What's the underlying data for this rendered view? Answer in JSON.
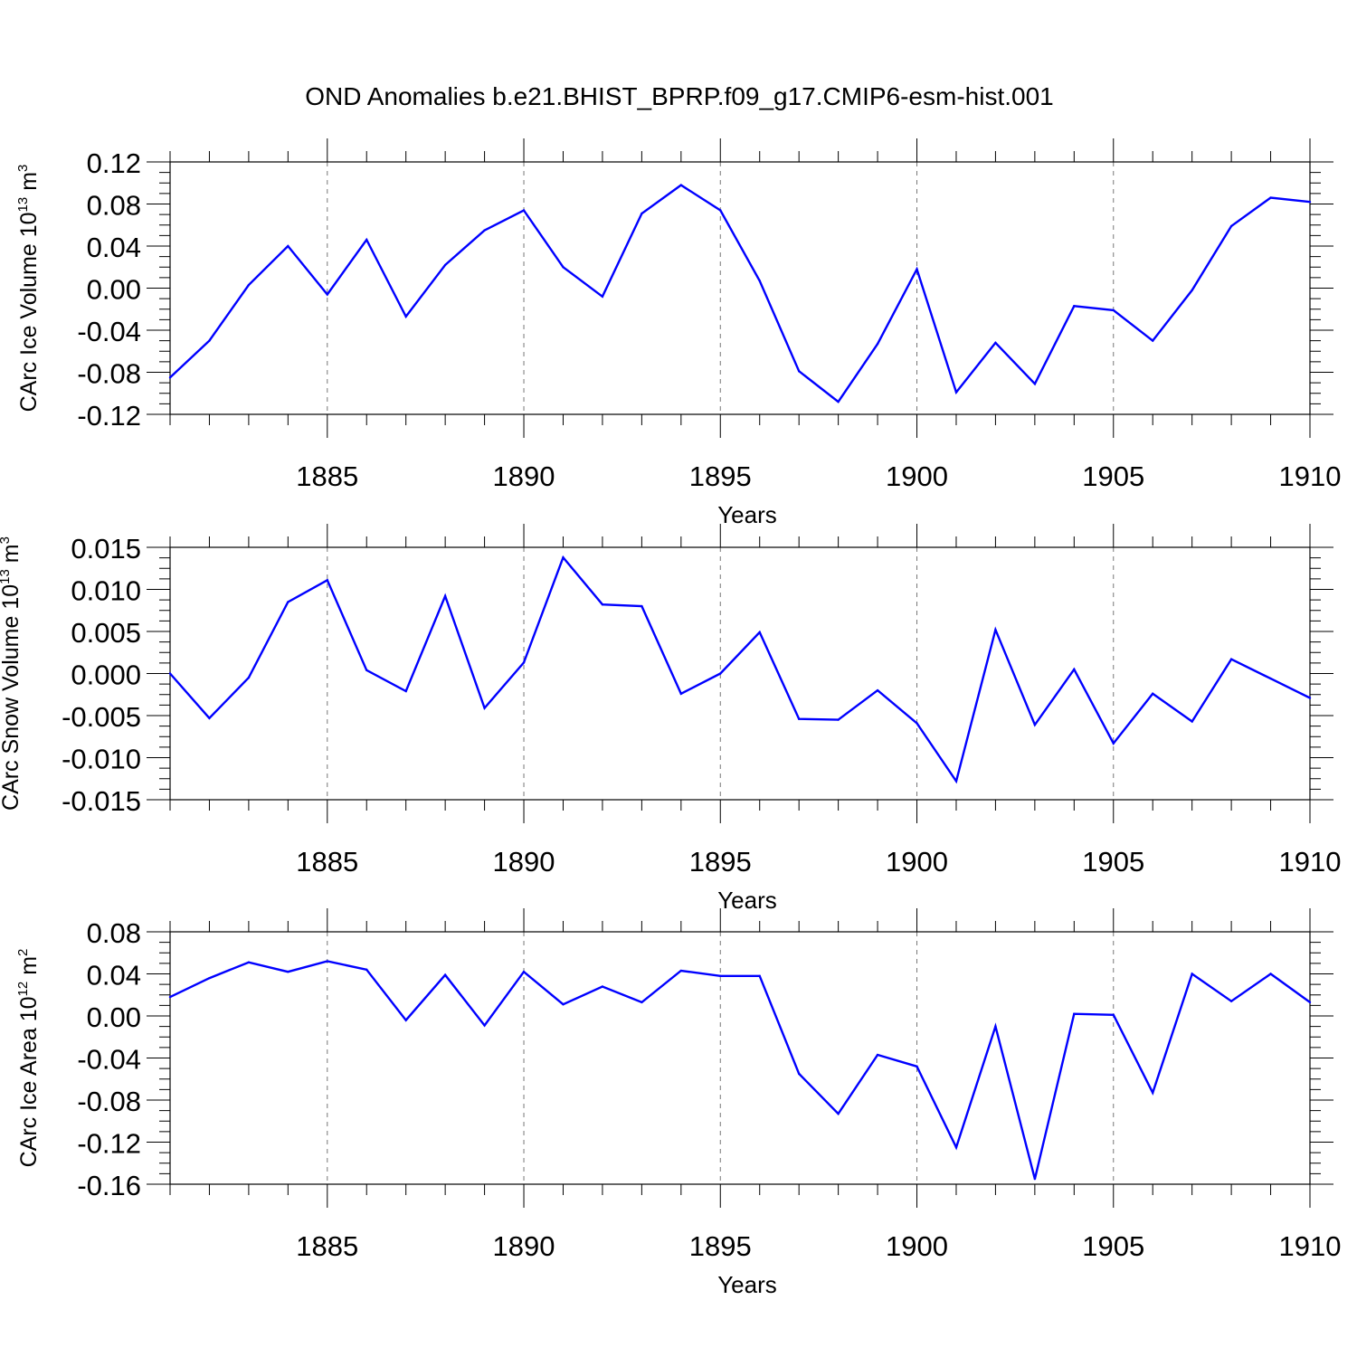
{
  "title": "OND Anomalies b.e21.BHIST_BPRP.f09_g17.CMIP6-esm-hist.001",
  "line_color": "#0000ff",
  "chart_data": [
    {
      "type": "line",
      "ylabel": {
        "main": "CArc Ice Volume 10",
        "exp": "13",
        "mid": " m",
        "unit_exp": "3"
      },
      "xlabel": "Years",
      "xlim": [
        1881,
        1910
      ],
      "ylim": [
        -0.12,
        0.12
      ],
      "xticks": [
        1885,
        1890,
        1895,
        1900,
        1905,
        1910
      ],
      "xtick_labels": [
        "1885",
        "1890",
        "1895",
        "1900",
        "1905",
        "1910"
      ],
      "yticks": [
        -0.12,
        -0.08,
        -0.04,
        0.0,
        0.04,
        0.08,
        0.12
      ],
      "ytick_labels": [
        "-0.12",
        "-0.08",
        "-0.04",
        "0.00",
        "0.04",
        "0.08",
        "0.12"
      ],
      "grid": "dashed vertical at major x ticks",
      "x": [
        1881,
        1882,
        1883,
        1884,
        1885,
        1886,
        1887,
        1888,
        1889,
        1890,
        1891,
        1892,
        1893,
        1894,
        1895,
        1896,
        1897,
        1898,
        1899,
        1900,
        1901,
        1902,
        1903,
        1904,
        1905,
        1906,
        1907,
        1908,
        1909,
        1910
      ],
      "values": [
        -0.085,
        -0.05,
        0.003,
        0.04,
        -0.006,
        0.046,
        -0.027,
        0.022,
        0.055,
        0.074,
        0.02,
        -0.008,
        0.071,
        0.098,
        0.074,
        0.007,
        -0.079,
        -0.108,
        -0.053,
        0.018,
        -0.099,
        -0.052,
        -0.091,
        -0.017,
        -0.021,
        -0.05,
        -0.002,
        0.059,
        0.086,
        0.082
      ]
    },
    {
      "type": "line",
      "ylabel": {
        "main": "CArc Snow Volume 10",
        "exp": "13",
        "mid": " m",
        "unit_exp": "3"
      },
      "xlabel": "Years",
      "xlim": [
        1881,
        1910
      ],
      "ylim": [
        -0.015,
        0.015
      ],
      "xticks": [
        1885,
        1890,
        1895,
        1900,
        1905,
        1910
      ],
      "xtick_labels": [
        "1885",
        "1890",
        "1895",
        "1900",
        "1905",
        "1910"
      ],
      "yticks": [
        -0.015,
        -0.01,
        -0.005,
        0.0,
        0.005,
        0.01,
        0.015
      ],
      "ytick_labels": [
        "-0.015",
        "-0.010",
        "-0.005",
        "0.000",
        "0.005",
        "0.010",
        "0.015"
      ],
      "grid": "dashed vertical at major x ticks",
      "x": [
        1881,
        1882,
        1883,
        1884,
        1885,
        1886,
        1887,
        1888,
        1889,
        1890,
        1891,
        1892,
        1893,
        1894,
        1895,
        1896,
        1897,
        1898,
        1899,
        1900,
        1901,
        1902,
        1903,
        1904,
        1905,
        1906,
        1907,
        1908,
        1909,
        1910
      ],
      "values": [
        0.0,
        -0.0053,
        -0.0005,
        0.0085,
        0.0111,
        0.0004,
        -0.0021,
        0.0092,
        -0.0041,
        0.0013,
        0.0138,
        0.0082,
        0.008,
        -0.0024,
        0.0,
        0.0049,
        -0.0054,
        -0.0055,
        -0.002,
        -0.0059,
        -0.0128,
        0.0052,
        -0.0061,
        0.0005,
        -0.0083,
        -0.0024,
        -0.0057,
        0.0017,
        -0.0006,
        -0.0029
      ]
    },
    {
      "type": "line",
      "ylabel": {
        "main": "CArc Ice Area 10",
        "exp": "12",
        "mid": " m",
        "unit_exp": "2"
      },
      "xlabel": "Years",
      "xlim": [
        1881,
        1910
      ],
      "ylim": [
        -0.16,
        0.08
      ],
      "xticks": [
        1885,
        1890,
        1895,
        1900,
        1905,
        1910
      ],
      "xtick_labels": [
        "1885",
        "1890",
        "1895",
        "1900",
        "1905",
        "1910"
      ],
      "yticks": [
        -0.16,
        -0.12,
        -0.08,
        -0.04,
        0.0,
        0.04,
        0.08
      ],
      "ytick_labels": [
        "-0.16",
        "-0.12",
        "-0.08",
        "-0.04",
        "0.00",
        "0.04",
        "0.08"
      ],
      "grid": "dashed vertical at major x ticks",
      "x": [
        1881,
        1882,
        1883,
        1884,
        1885,
        1886,
        1887,
        1888,
        1889,
        1890,
        1891,
        1892,
        1893,
        1894,
        1895,
        1896,
        1897,
        1898,
        1899,
        1900,
        1901,
        1902,
        1903,
        1904,
        1905,
        1906,
        1907,
        1908,
        1909,
        1910
      ],
      "values": [
        0.018,
        0.036,
        0.051,
        0.042,
        0.052,
        0.044,
        -0.004,
        0.039,
        -0.009,
        0.042,
        0.011,
        0.028,
        0.013,
        0.043,
        0.038,
        0.038,
        -0.055,
        -0.093,
        -0.037,
        -0.048,
        -0.125,
        -0.01,
        -0.155,
        0.002,
        0.001,
        -0.073,
        0.04,
        0.014,
        0.04,
        0.013
      ]
    }
  ]
}
